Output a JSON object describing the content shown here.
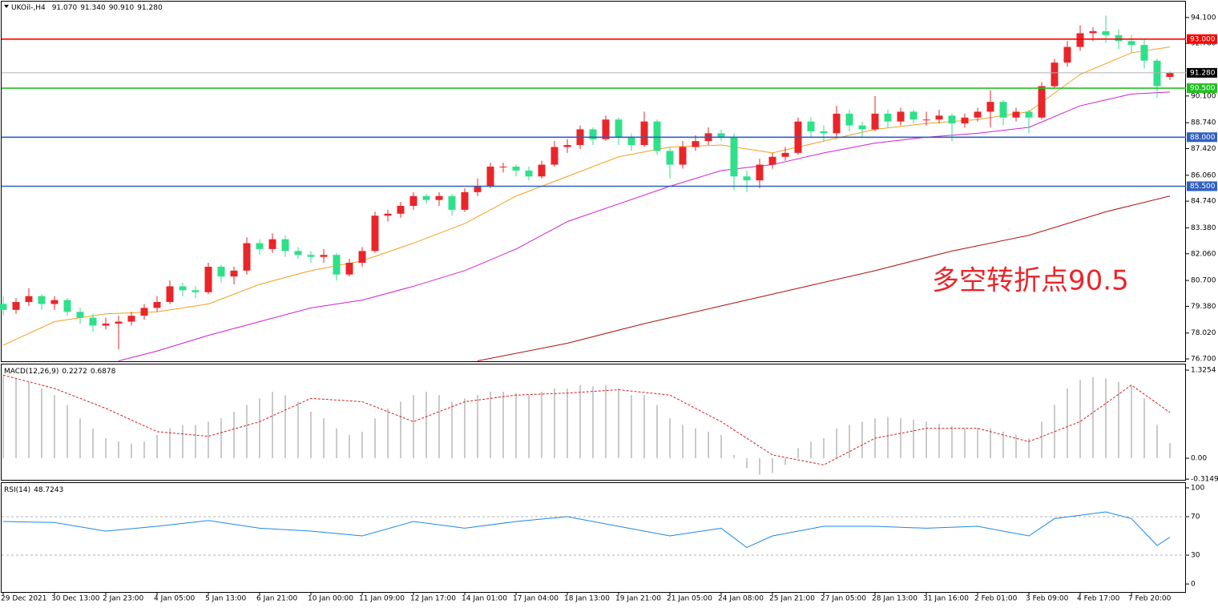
{
  "chart_data": [
    {
      "type": "candlestick",
      "title": {
        "symbol": "UKOil-,H4",
        "ohlc": [
          {
            "value": 91.07,
            "label": "91.070"
          },
          {
            "value": 91.34,
            "label": "91.340"
          },
          {
            "value": 90.91,
            "label": "90.910"
          },
          {
            "value": 91.28,
            "label": "91.280"
          }
        ]
      },
      "categories": [
        "29 Dec 2021",
        null,
        null,
        null,
        "30 Dec 13:00",
        null,
        null,
        null,
        "2 Jan 23:00",
        null,
        null,
        null,
        "4 Jan 05:00",
        null,
        null,
        null,
        "5 Jan 13:00",
        null,
        null,
        null,
        "6 Jan 21:00",
        null,
        null,
        null,
        "10 Jan 00:00",
        null,
        null,
        null,
        "11 Jan 09:00",
        null,
        null,
        null,
        "12 Jan 17:00",
        null,
        null,
        null,
        "14 Jan 01:00",
        null,
        null,
        null,
        "17 Jan 04:00",
        null,
        null,
        null,
        "18 Jan 13:00",
        null,
        null,
        null,
        "19 Jan 21:00",
        null,
        null,
        null,
        "21 Jan 05:00",
        null,
        null,
        null,
        "24 Jan 08:00",
        null,
        null,
        null,
        "25 Jan 21:00",
        null,
        null,
        null,
        "27 Jan 05:00",
        null,
        null,
        null,
        "28 Jan 13:00",
        null,
        null,
        null,
        "31 Jan 16:00",
        null,
        null,
        null,
        "2 Feb 01:00",
        null,
        null,
        null,
        "3 Feb 09:00",
        null,
        null,
        null,
        "4 Feb 17:00",
        null,
        null,
        null,
        "7 Feb 20:00",
        null,
        null,
        null
      ],
      "ohlc": [
        [
          79.5,
          79.9,
          78.9,
          79.2
        ],
        [
          79.2,
          79.8,
          79.0,
          79.6
        ],
        [
          79.6,
          80.3,
          79.4,
          79.9
        ],
        [
          79.9,
          80.0,
          79.2,
          79.5
        ],
        [
          79.5,
          79.9,
          79.2,
          79.7
        ],
        [
          79.7,
          79.8,
          78.9,
          79.1
        ],
        [
          79.1,
          79.3,
          78.5,
          78.8
        ],
        [
          78.8,
          79.0,
          78.1,
          78.4
        ],
        [
          78.4,
          78.8,
          78.2,
          78.5
        ],
        [
          78.5,
          78.9,
          77.2,
          78.6
        ],
        [
          78.6,
          79.1,
          78.4,
          78.9
        ],
        [
          78.9,
          79.5,
          78.7,
          79.3
        ],
        [
          79.3,
          79.9,
          79.1,
          79.6
        ],
        [
          79.6,
          80.7,
          79.5,
          80.4
        ],
        [
          80.4,
          80.6,
          79.9,
          80.2
        ],
        [
          80.2,
          80.4,
          79.8,
          80.1
        ],
        [
          80.1,
          81.6,
          80.0,
          81.4
        ],
        [
          81.4,
          81.5,
          80.6,
          80.9
        ],
        [
          80.9,
          81.4,
          80.5,
          81.2
        ],
        [
          81.2,
          82.9,
          81.0,
          82.6
        ],
        [
          82.6,
          82.8,
          82.0,
          82.3
        ],
        [
          82.3,
          83.1,
          82.1,
          82.8
        ],
        [
          82.8,
          83.0,
          81.9,
          82.2
        ],
        [
          82.2,
          82.4,
          81.8,
          82.0
        ],
        [
          82.0,
          82.2,
          81.6,
          81.9
        ],
        [
          81.9,
          82.3,
          81.6,
          82.0
        ],
        [
          82.0,
          82.1,
          80.7,
          81.0
        ],
        [
          81.0,
          81.8,
          80.9,
          81.6
        ],
        [
          81.6,
          82.4,
          81.4,
          82.2
        ],
        [
          82.2,
          84.2,
          82.1,
          84.0
        ],
        [
          84.0,
          84.3,
          83.7,
          84.1
        ],
        [
          84.1,
          84.7,
          83.9,
          84.5
        ],
        [
          84.5,
          85.2,
          84.3,
          85.0
        ],
        [
          85.0,
          85.1,
          84.6,
          84.8
        ],
        [
          84.8,
          85.2,
          84.5,
          85.0
        ],
        [
          85.0,
          85.1,
          84.0,
          84.3
        ],
        [
          84.3,
          85.4,
          84.2,
          85.2
        ],
        [
          85.2,
          85.9,
          85.0,
          85.5
        ],
        [
          85.5,
          86.7,
          85.4,
          86.5
        ],
        [
          86.5,
          86.7,
          86.2,
          86.5
        ],
        [
          86.5,
          86.6,
          86.0,
          86.3
        ],
        [
          86.3,
          86.5,
          85.8,
          86.0
        ],
        [
          86.0,
          86.8,
          85.9,
          86.6
        ],
        [
          86.6,
          87.8,
          86.5,
          87.5
        ],
        [
          87.5,
          87.9,
          87.2,
          87.6
        ],
        [
          87.6,
          88.6,
          87.4,
          88.4
        ],
        [
          88.4,
          88.5,
          87.6,
          87.9
        ],
        [
          87.9,
          89.1,
          87.8,
          88.9
        ],
        [
          88.9,
          89.0,
          87.6,
          88.0
        ],
        [
          88.0,
          88.2,
          87.3,
          87.6
        ],
        [
          87.6,
          89.3,
          87.5,
          88.8
        ],
        [
          88.8,
          88.9,
          87.1,
          87.3
        ],
        [
          87.3,
          87.5,
          85.9,
          86.6
        ],
        [
          86.6,
          87.8,
          86.4,
          87.5
        ],
        [
          87.5,
          88.1,
          87.3,
          87.8
        ],
        [
          87.8,
          88.5,
          87.6,
          88.2
        ],
        [
          88.2,
          88.4,
          87.8,
          88.0
        ],
        [
          88.0,
          88.2,
          85.3,
          86.0
        ],
        [
          86.0,
          86.3,
          85.2,
          85.8
        ],
        [
          85.8,
          86.9,
          85.4,
          86.6
        ],
        [
          86.6,
          87.2,
          86.4,
          87.0
        ],
        [
          87.0,
          87.5,
          86.8,
          87.2
        ],
        [
          87.2,
          89.0,
          87.1,
          88.8
        ],
        [
          88.8,
          89.0,
          88.0,
          88.3
        ],
        [
          88.3,
          88.6,
          87.8,
          88.2
        ],
        [
          88.2,
          89.6,
          88.0,
          89.2
        ],
        [
          89.2,
          89.4,
          88.3,
          88.6
        ],
        [
          88.6,
          88.8,
          88.0,
          88.4
        ],
        [
          88.4,
          90.1,
          88.3,
          89.2
        ],
        [
          89.2,
          89.4,
          88.5,
          88.8
        ],
        [
          88.8,
          89.5,
          88.6,
          89.3
        ],
        [
          89.3,
          89.4,
          88.7,
          88.9
        ],
        [
          88.9,
          89.3,
          88.6,
          88.9
        ],
        [
          88.9,
          89.4,
          88.7,
          89.1
        ],
        [
          89.1,
          89.2,
          87.8,
          88.7
        ],
        [
          88.7,
          89.2,
          88.5,
          89.0
        ],
        [
          89.0,
          89.5,
          88.8,
          89.3
        ],
        [
          89.3,
          90.4,
          88.5,
          89.8
        ],
        [
          89.8,
          89.9,
          88.6,
          89.0
        ],
        [
          89.0,
          89.5,
          88.8,
          89.3
        ],
        [
          89.3,
          89.4,
          88.2,
          89.0
        ],
        [
          89.0,
          90.8,
          88.9,
          90.6
        ],
        [
          90.6,
          92.0,
          90.5,
          91.8
        ],
        [
          91.8,
          92.9,
          91.6,
          92.6
        ],
        [
          92.6,
          93.7,
          92.4,
          93.3
        ],
        [
          93.3,
          93.6,
          92.9,
          93.4
        ],
        [
          93.4,
          94.2,
          92.8,
          93.2
        ],
        [
          93.2,
          93.5,
          92.5,
          92.9
        ],
        [
          92.9,
          93.2,
          92.3,
          92.7
        ],
        [
          92.7,
          93.0,
          91.5,
          91.9
        ],
        [
          91.9,
          92.0,
          90.0,
          90.6
        ],
        [
          91.07,
          91.34,
          90.91,
          91.28
        ]
      ],
      "up_color": "#e8262a",
      "down_color": "#2fe08a",
      "lines": [
        {
          "color": "#f0a020",
          "x": [
            0,
            4,
            8,
            12,
            16,
            20,
            24,
            28,
            32,
            36,
            40,
            44,
            48,
            52,
            56,
            60,
            64,
            68,
            72,
            76,
            80,
            84,
            88,
            91
          ],
          "values": [
            77.4,
            78.6,
            79.0,
            79.1,
            79.5,
            80.5,
            81.2,
            81.7,
            82.6,
            83.6,
            85.0,
            86.0,
            87.0,
            87.5,
            87.6,
            87.2,
            87.8,
            88.4,
            88.7,
            88.9,
            89.3,
            91.2,
            92.3,
            92.6
          ]
        },
        {
          "color": "#d020d0",
          "x": [
            9,
            12,
            16,
            20,
            24,
            28,
            32,
            36,
            40,
            44,
            48,
            52,
            56,
            60,
            64,
            68,
            72,
            76,
            80,
            84,
            88,
            91
          ],
          "values": [
            76.6,
            77.1,
            77.9,
            78.6,
            79.3,
            79.7,
            80.4,
            81.2,
            82.3,
            83.7,
            84.6,
            85.5,
            86.3,
            86.6,
            87.2,
            87.7,
            88.0,
            88.2,
            88.5,
            89.6,
            90.2,
            90.3
          ]
        },
        {
          "color": "#b01010",
          "x": [
            37,
            44,
            50,
            56,
            62,
            68,
            74,
            80,
            86,
            91
          ],
          "values": [
            76.6,
            77.5,
            78.5,
            79.4,
            80.3,
            81.2,
            82.2,
            83.0,
            84.2,
            85.0
          ]
        }
      ],
      "levels": [
        {
          "value": 93,
          "label": "93.000",
          "color": "#ff0000",
          "box_color": "#ff0000"
        },
        {
          "value": 91.28,
          "label": "91.280",
          "color": "#b0b0b0",
          "box_color": "#000000"
        },
        {
          "value": 90.5,
          "label": "90.500",
          "color": "#22c022",
          "box_color": "#22c022"
        },
        {
          "value": 88,
          "label": "88.000",
          "color": "#3060c0",
          "box_color": "#3060c0"
        },
        {
          "value": 85.5,
          "label": "85.500",
          "color": "#3060c0",
          "box_color": "#3060c0"
        }
      ],
      "annotation": "多空转折点90.5",
      "annotation_color": "#e8262a",
      "ylim": [
        76.58,
        94.91
      ],
      "yticks": [
        {
          "value": 94.1,
          "label": "94.100"
        },
        {
          "value": 92.78,
          "label": "92.780"
        },
        {
          "value": 90.1,
          "label": "90.100"
        },
        {
          "value": 88.74,
          "label": "88.740"
        },
        {
          "value": 87.42,
          "label": "87.420"
        },
        {
          "value": 86.06,
          "label": "86.060"
        },
        {
          "value": 84.74,
          "label": "84.740"
        },
        {
          "value": 83.38,
          "label": "83.380"
        },
        {
          "value": 82.06,
          "label": "82.060"
        },
        {
          "value": 80.7,
          "label": "80.700"
        },
        {
          "value": 79.38,
          "label": "79.380"
        },
        {
          "value": 78.02,
          "label": "78.020"
        },
        {
          "value": 76.7,
          "label": "76.700"
        }
      ]
    },
    {
      "type": "macd",
      "title": "MACD(12,26,9)",
      "readings": [
        0.2272,
        0.6878
      ],
      "values": [
        1.25,
        1.2,
        1.15,
        1.05,
        0.95,
        0.8,
        0.6,
        0.45,
        0.3,
        0.25,
        0.22,
        0.25,
        0.35,
        0.45,
        0.5,
        0.5,
        0.55,
        0.6,
        0.7,
        0.8,
        0.9,
        1.0,
        0.95,
        0.85,
        0.7,
        0.6,
        0.45,
        0.35,
        0.4,
        0.6,
        0.75,
        0.85,
        0.95,
        1.0,
        0.95,
        0.85,
        0.9,
        0.95,
        1.0,
        1.0,
        0.98,
        0.95,
        1.0,
        1.05,
        1.05,
        1.1,
        1.08,
        1.1,
        1.05,
        0.95,
        0.95,
        0.8,
        0.6,
        0.5,
        0.45,
        0.4,
        0.35,
        0.05,
        -0.15,
        -0.25,
        -0.22,
        -0.1,
        0.15,
        0.25,
        0.3,
        0.45,
        0.5,
        0.55,
        0.6,
        0.62,
        0.6,
        0.58,
        0.55,
        0.52,
        0.48,
        0.45,
        0.45,
        0.45,
        0.4,
        0.35,
        0.3,
        0.55,
        0.8,
        1.05,
        1.18,
        1.22,
        1.2,
        1.15,
        1.08,
        0.9,
        0.5,
        0.2272
      ],
      "color": "#b8b8b8",
      "signal": {
        "color": "#d02020",
        "x": [
          0,
          4,
          8,
          12,
          16,
          20,
          24,
          28,
          32,
          36,
          40,
          44,
          48,
          52,
          56,
          60,
          64,
          68,
          72,
          76,
          80,
          84,
          88,
          91
        ],
        "values": [
          1.25,
          1.05,
          0.75,
          0.4,
          0.33,
          0.55,
          0.9,
          0.85,
          0.55,
          0.85,
          0.95,
          0.98,
          1.03,
          0.95,
          0.55,
          0.05,
          -0.1,
          0.3,
          0.45,
          0.45,
          0.25,
          0.55,
          1.1,
          0.6878
        ]
      },
      "ylim": [
        -0.325,
        1.41
      ],
      "yticks": [
        1.3254,
        {
          "value": 0,
          "label": "0.00"
        },
        -0.3149
      ]
    },
    {
      "type": "line",
      "title": "RSI(14)",
      "readings": [
        48.7243
      ],
      "series": [
        {
          "color": "#1e88e5",
          "x": [
            0,
            4,
            8,
            12,
            16,
            20,
            24,
            28,
            32,
            36,
            40,
            44,
            48,
            52,
            56,
            58,
            60,
            64,
            68,
            72,
            76,
            80,
            82,
            86,
            88,
            90,
            91
          ],
          "values": [
            65,
            64,
            55,
            60,
            66,
            58,
            55,
            50,
            65,
            58,
            65,
            70,
            60,
            50,
            58,
            38,
            50,
            60,
            60,
            58,
            60,
            50,
            68,
            75,
            68,
            40,
            48.7243
          ]
        }
      ],
      "levels": [
        70,
        30
      ],
      "ylim": [
        -8.3,
        105
      ],
      "yticks": [
        100,
        70,
        30,
        0
      ]
    }
  ]
}
